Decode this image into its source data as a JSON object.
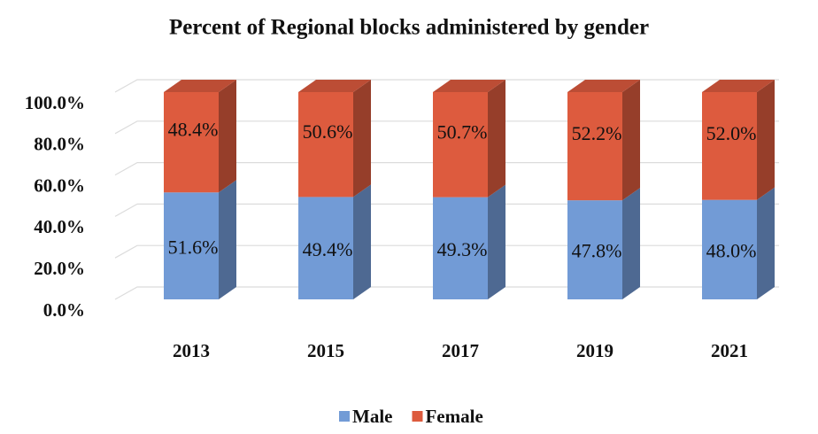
{
  "chart_data": {
    "type": "bar3d_stacked",
    "title": "Percent of Regional blocks administered by gender",
    "categories": [
      "2013",
      "2015",
      "2017",
      "2019",
      "2021"
    ],
    "series": [
      {
        "name": "Male",
        "color": "#729bd6",
        "values": [
          51.6,
          49.4,
          49.3,
          47.8,
          48.0
        ],
        "value_labels": [
          "51.6%",
          "49.4%",
          "49.3%",
          "47.8%",
          "48.0%"
        ]
      },
      {
        "name": "Female",
        "color": "#dd5b3e",
        "values": [
          48.4,
          50.6,
          50.7,
          52.2,
          52.0
        ],
        "value_labels": [
          "48.4%",
          "50.6%",
          "50.7%",
          "52.2%",
          "52.0%"
        ]
      }
    ],
    "ylim": [
      0,
      100
    ],
    "yticks": [
      {
        "value": 0,
        "label": "0.0%"
      },
      {
        "value": 20,
        "label": "20.0%"
      },
      {
        "value": 40,
        "label": "40.0%"
      },
      {
        "value": 60,
        "label": "60.0%"
      },
      {
        "value": 80,
        "label": "80.0%"
      },
      {
        "value": 100,
        "label": "100.0%"
      }
    ],
    "grid": true,
    "legend": "bottom"
  }
}
